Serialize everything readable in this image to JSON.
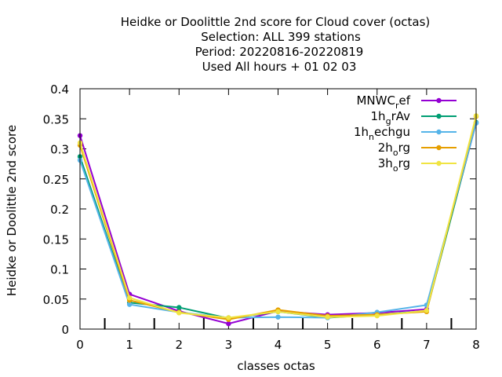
{
  "chart_data": {
    "type": "line",
    "title_lines": [
      "Heidke or Doolittle 2nd score  for Cloud cover (octas)",
      "Selection: ALL    399 stations",
      "Period: 20220816-20220819",
      "Used  All hours  + 01 02 03"
    ],
    "xlabel": "classes octas",
    "ylabel": "Heidke or Doolittle 2nd score",
    "xlim": [
      0,
      8
    ],
    "ylim": [
      0,
      0.4
    ],
    "x_ticks": [
      "0",
      "1",
      "2",
      "3",
      "4",
      "5",
      "6",
      "7",
      "8"
    ],
    "y_ticks": [
      "0",
      "0.05",
      "0.1",
      "0.15",
      "0.2",
      "0.25",
      "0.3",
      "0.35",
      "0.4"
    ],
    "x": [
      0,
      1,
      2,
      3,
      4,
      5,
      6,
      7,
      8
    ],
    "legend_position": "top-right",
    "series": [
      {
        "name_main": "MNWC",
        "name_sub": "r",
        "name_rest": "ef",
        "color": "#9400d3",
        "values": [
          0.322,
          0.058,
          0.03,
          0.009,
          0.03,
          0.024,
          0.027,
          0.033,
          0.343
        ]
      },
      {
        "name_main": "1h",
        "name_sub": "g",
        "name_rest": "rAv",
        "color": "#009e73",
        "values": [
          0.287,
          0.044,
          0.036,
          0.018,
          0.029,
          0.019,
          0.024,
          0.03,
          0.344
        ]
      },
      {
        "name_main": "1h",
        "name_sub": "n",
        "name_rest": "echgu",
        "color": "#56b4e9",
        "values": [
          0.281,
          0.041,
          0.028,
          0.019,
          0.02,
          0.019,
          0.028,
          0.04,
          0.343
        ]
      },
      {
        "name_main": "2h",
        "name_sub": "o",
        "name_rest": "rg",
        "color": "#e69f00",
        "values": [
          0.306,
          0.048,
          0.028,
          0.016,
          0.032,
          0.022,
          0.024,
          0.029,
          0.354
        ]
      },
      {
        "name_main": "3h",
        "name_sub": "o",
        "name_rest": "rg",
        "color": "#f0e442",
        "values": [
          0.31,
          0.052,
          0.027,
          0.019,
          0.029,
          0.02,
          0.022,
          0.031,
          0.355
        ]
      }
    ]
  }
}
